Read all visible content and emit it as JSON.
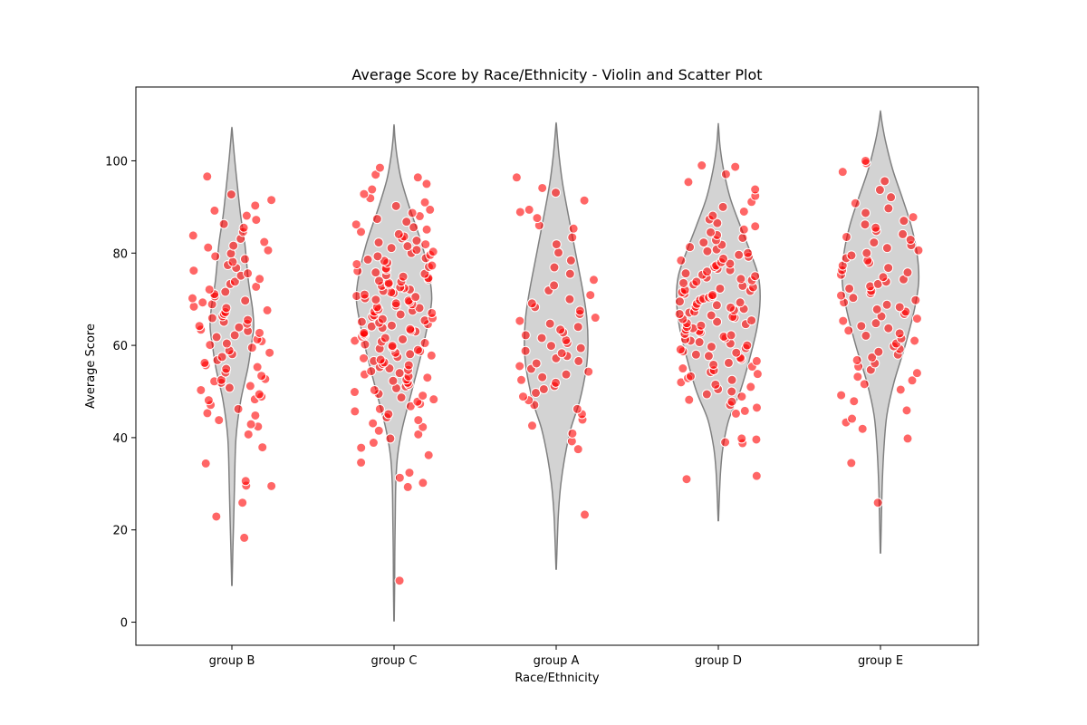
{
  "chart_data": {
    "type": "violin",
    "title": "Average Score by Race/Ethnicity - Violin and Scatter Plot",
    "xlabel": "Race/Ethnicity",
    "ylabel": "Average Score",
    "ylim": [
      -5,
      116
    ],
    "yticks": [
      0,
      20,
      40,
      60,
      80,
      100
    ],
    "categories": [
      "group B",
      "group C",
      "group A",
      "group D",
      "group E"
    ],
    "violins": [
      {
        "category": "group B",
        "profile": [
          [
            8,
            0.3
          ],
          [
            15,
            1.5
          ],
          [
            22,
            3
          ],
          [
            30,
            4.5
          ],
          [
            40,
            7
          ],
          [
            48,
            15
          ],
          [
            55,
            27
          ],
          [
            60,
            33
          ],
          [
            64,
            37
          ],
          [
            68,
            35
          ],
          [
            74,
            28
          ],
          [
            82,
            22
          ],
          [
            88,
            15
          ],
          [
            95,
            9
          ],
          [
            100,
            5
          ],
          [
            105,
            1.5
          ],
          [
            107,
            0.3
          ]
        ]
      },
      {
        "category": "group C",
        "profile": [
          [
            0.3,
            0.3
          ],
          [
            8,
            1
          ],
          [
            15,
            1.3
          ],
          [
            22,
            2
          ],
          [
            30,
            3
          ],
          [
            36,
            6
          ],
          [
            42,
            14
          ],
          [
            50,
            30
          ],
          [
            58,
            46
          ],
          [
            65,
            58
          ],
          [
            70,
            64
          ],
          [
            75,
            60
          ],
          [
            82,
            47
          ],
          [
            90,
            26
          ],
          [
            96,
            12
          ],
          [
            101,
            5
          ],
          [
            105,
            1.5
          ],
          [
            107.5,
            0.3
          ]
        ]
      },
      {
        "category": "group A",
        "profile": [
          [
            11.5,
            0.3
          ],
          [
            18,
            2
          ],
          [
            24,
            4
          ],
          [
            30,
            8
          ],
          [
            36,
            15
          ],
          [
            42,
            25
          ],
          [
            48,
            40
          ],
          [
            55,
            51
          ],
          [
            60,
            54
          ],
          [
            66,
            52
          ],
          [
            72,
            45
          ],
          [
            80,
            33
          ],
          [
            88,
            21
          ],
          [
            95,
            11
          ],
          [
            101,
            5
          ],
          [
            106,
            1.5
          ],
          [
            108,
            0.3
          ]
        ]
      },
      {
        "category": "group D",
        "profile": [
          [
            22,
            0.3
          ],
          [
            28,
            2
          ],
          [
            33,
            4
          ],
          [
            38,
            8
          ],
          [
            44,
            18
          ],
          [
            50,
            37
          ],
          [
            57,
            53
          ],
          [
            64,
            66
          ],
          [
            70,
            71
          ],
          [
            75,
            68
          ],
          [
            80,
            55
          ],
          [
            86,
            37
          ],
          [
            92,
            20
          ],
          [
            98,
            9
          ],
          [
            103,
            3
          ],
          [
            107.5,
            0.3
          ]
        ]
      },
      {
        "category": "group E",
        "profile": [
          [
            15,
            0.3
          ],
          [
            22,
            1.5
          ],
          [
            30,
            3
          ],
          [
            38,
            6
          ],
          [
            45,
            11
          ],
          [
            52,
            23
          ],
          [
            60,
            42
          ],
          [
            68,
            58
          ],
          [
            74,
            65
          ],
          [
            80,
            62
          ],
          [
            86,
            52
          ],
          [
            92,
            37
          ],
          [
            98,
            21
          ],
          [
            104,
            9
          ],
          [
            108,
            3
          ],
          [
            110.5,
            0.3
          ]
        ]
      }
    ],
    "points": [
      {
        "category": "group B",
        "values": [
          18.3,
          22.9,
          25.9,
          29.5,
          29.6,
          30.6,
          34.4,
          37.9,
          40.7,
          42.4,
          42.9,
          43.8,
          44.8,
          45.3,
          46.2,
          47.1,
          48.1,
          48.3,
          48.9,
          49.4,
          50.3,
          50.8,
          51.2,
          51.9,
          52.2,
          52.5,
          52.7,
          53.4,
          54.1,
          54.9,
          55.3,
          55.7,
          56.2,
          56.8,
          57.5,
          58.1,
          58.4,
          58.9,
          59.5,
          60.1,
          60.4,
          60.9,
          61.3,
          61.8,
          62.2,
          62.7,
          63.1,
          63.4,
          63.9,
          64.2,
          64.7,
          65.1,
          65.5,
          65.9,
          66.3,
          66.8,
          67.2,
          67.6,
          68.1,
          68.4,
          68.9,
          69.3,
          69.7,
          70.2,
          70.6,
          71.1,
          71.6,
          72.1,
          72.7,
          73.3,
          73.8,
          74.4,
          75.1,
          75.6,
          76.2,
          76.8,
          77.4,
          78.1,
          78.7,
          79.3,
          79.9,
          80.6,
          81.2,
          81.6,
          82.4,
          83.1,
          83.8,
          84.6,
          85.5,
          86.3,
          87.2,
          88.1,
          89.2,
          90.3,
          91.5,
          92.7,
          96.6
        ]
      },
      {
        "category": "group C",
        "values": [
          9.0,
          29.3,
          30.2,
          31.3,
          32.4,
          34.6,
          36.2,
          37.8,
          38.9,
          39.8,
          40.7,
          41.5,
          42.3,
          43.1,
          43.8,
          44.4,
          45.1,
          45.7,
          46.2,
          46.8,
          47.3,
          47.8,
          48.3,
          48.7,
          49.1,
          49.5,
          49.9,
          50.3,
          50.7,
          51.1,
          51.5,
          51.9,
          52.3,
          52.6,
          53.0,
          53.3,
          53.7,
          54.0,
          54.4,
          54.7,
          55.0,
          55.3,
          55.7,
          56.0,
          56.3,
          56.6,
          56.9,
          57.2,
          57.5,
          57.8,
          58.1,
          58.4,
          58.7,
          59.0,
          59.3,
          59.6,
          59.9,
          60.2,
          60.5,
          60.8,
          61.0,
          61.3,
          61.6,
          61.9,
          62.2,
          62.4,
          62.7,
          63.0,
          63.2,
          63.5,
          63.8,
          64.1,
          64.3,
          64.6,
          64.9,
          65.1,
          65.4,
          65.7,
          65.9,
          66.2,
          66.5,
          66.7,
          67.0,
          67.3,
          67.5,
          67.8,
          68.1,
          68.3,
          68.6,
          68.9,
          69.1,
          69.4,
          69.7,
          69.9,
          70.2,
          70.5,
          70.7,
          71.0,
          71.3,
          71.5,
          71.8,
          72.1,
          72.4,
          72.6,
          72.9,
          73.2,
          73.5,
          73.8,
          74.0,
          74.3,
          74.6,
          74.9,
          75.2,
          75.5,
          75.8,
          76.1,
          76.4,
          76.7,
          77.0,
          77.3,
          77.6,
          77.9,
          78.3,
          78.6,
          78.9,
          79.3,
          79.6,
          80.0,
          80.3,
          80.7,
          81.1,
          81.5,
          81.9,
          82.3,
          82.7,
          83.2,
          83.6,
          84.1,
          84.6,
          85.1,
          85.6,
          86.2,
          86.8,
          87.4,
          88.0,
          88.7,
          89.4,
          90.2,
          91.0,
          91.9,
          92.8,
          93.8,
          95.0,
          96.4,
          97.0,
          98.5
        ]
      },
      {
        "category": "group A",
        "values": [
          23.3,
          37.5,
          39.2,
          40.9,
          42.6,
          43.9,
          45.1,
          46.2,
          47.1,
          48.1,
          48.9,
          49.7,
          50.5,
          51.2,
          51.9,
          52.5,
          53.1,
          53.7,
          54.3,
          54.9,
          55.5,
          56.1,
          56.6,
          57.2,
          57.7,
          58.3,
          58.8,
          59.4,
          59.9,
          60.5,
          61.1,
          61.6,
          62.2,
          62.8,
          63.4,
          64.0,
          64.7,
          65.3,
          66.0,
          66.8,
          67.5,
          68.3,
          69.1,
          70.0,
          70.9,
          71.9,
          73.0,
          74.2,
          75.5,
          76.9,
          78.4,
          80.1,
          81.9,
          83.4,
          85.3,
          86.0,
          87.6,
          88.9,
          89.4,
          91.4,
          93.1,
          94.1,
          96.4
        ]
      },
      {
        "category": "group D",
        "values": [
          31.0,
          31.7,
          38.8,
          39.0,
          39.6,
          39.8,
          45.2,
          45.8,
          46.5,
          47.1,
          47.8,
          48.2,
          48.9,
          49.4,
          50.0,
          50.5,
          51.0,
          51.5,
          52.0,
          52.5,
          52.9,
          53.3,
          53.8,
          54.2,
          54.6,
          55.0,
          55.4,
          55.8,
          56.2,
          56.6,
          57.0,
          57.3,
          57.7,
          58.0,
          58.4,
          58.7,
          59.1,
          59.4,
          59.7,
          60.0,
          60.4,
          60.7,
          61.0,
          61.3,
          61.6,
          61.9,
          62.2,
          62.5,
          62.8,
          63.1,
          63.4,
          63.7,
          64.0,
          64.3,
          64.6,
          64.8,
          65.1,
          65.4,
          65.7,
          66.0,
          66.2,
          66.5,
          66.8,
          67.1,
          67.3,
          67.6,
          67.9,
          68.2,
          68.4,
          68.7,
          69.0,
          69.3,
          69.5,
          69.8,
          70.1,
          70.4,
          70.6,
          70.9,
          71.2,
          71.5,
          71.8,
          72.0,
          72.3,
          72.6,
          72.9,
          73.2,
          73.5,
          73.8,
          74.1,
          74.4,
          74.7,
          75.0,
          75.3,
          75.6,
          76.0,
          76.3,
          76.6,
          77.0,
          77.3,
          77.7,
          78.0,
          78.4,
          78.8,
          79.2,
          79.6,
          80.0,
          80.4,
          80.8,
          81.3,
          81.8,
          82.3,
          82.8,
          83.3,
          83.9,
          84.5,
          85.1,
          85.8,
          86.5,
          87.3,
          88.1,
          89.0,
          90.0,
          91.1,
          92.4,
          93.8,
          95.4,
          97.1,
          98.7,
          99.0
        ]
      },
      {
        "category": "group E",
        "values": [
          25.9,
          34.5,
          39.8,
          41.9,
          43.3,
          44.1,
          45.9,
          47.9,
          49.2,
          50.4,
          51.6,
          52.4,
          53.2,
          54.0,
          54.7,
          55.4,
          56.1,
          56.8,
          57.4,
          58.0,
          58.6,
          59.2,
          59.8,
          60.4,
          61.0,
          61.5,
          62.1,
          62.6,
          63.2,
          63.7,
          64.2,
          64.8,
          65.3,
          65.8,
          66.3,
          66.8,
          67.3,
          67.8,
          68.3,
          68.8,
          69.3,
          69.8,
          70.3,
          70.8,
          71.3,
          71.8,
          72.3,
          72.8,
          73.3,
          73.8,
          74.3,
          74.8,
          75.3,
          75.8,
          76.3,
          76.8,
          77.3,
          77.9,
          78.4,
          78.9,
          79.5,
          80.0,
          80.6,
          81.1,
          81.7,
          82.3,
          82.9,
          83.5,
          84.1,
          84.8,
          85.5,
          86.2,
          87.0,
          87.8,
          88.7,
          89.7,
          90.8,
          92.1,
          93.7,
          95.6,
          97.6,
          99.5,
          100.0
        ]
      }
    ],
    "colors": {
      "violin_fill": "#d3d3d3",
      "violin_edge": "#808080",
      "points": "#ff0000"
    },
    "grid": false,
    "legend": "none"
  }
}
